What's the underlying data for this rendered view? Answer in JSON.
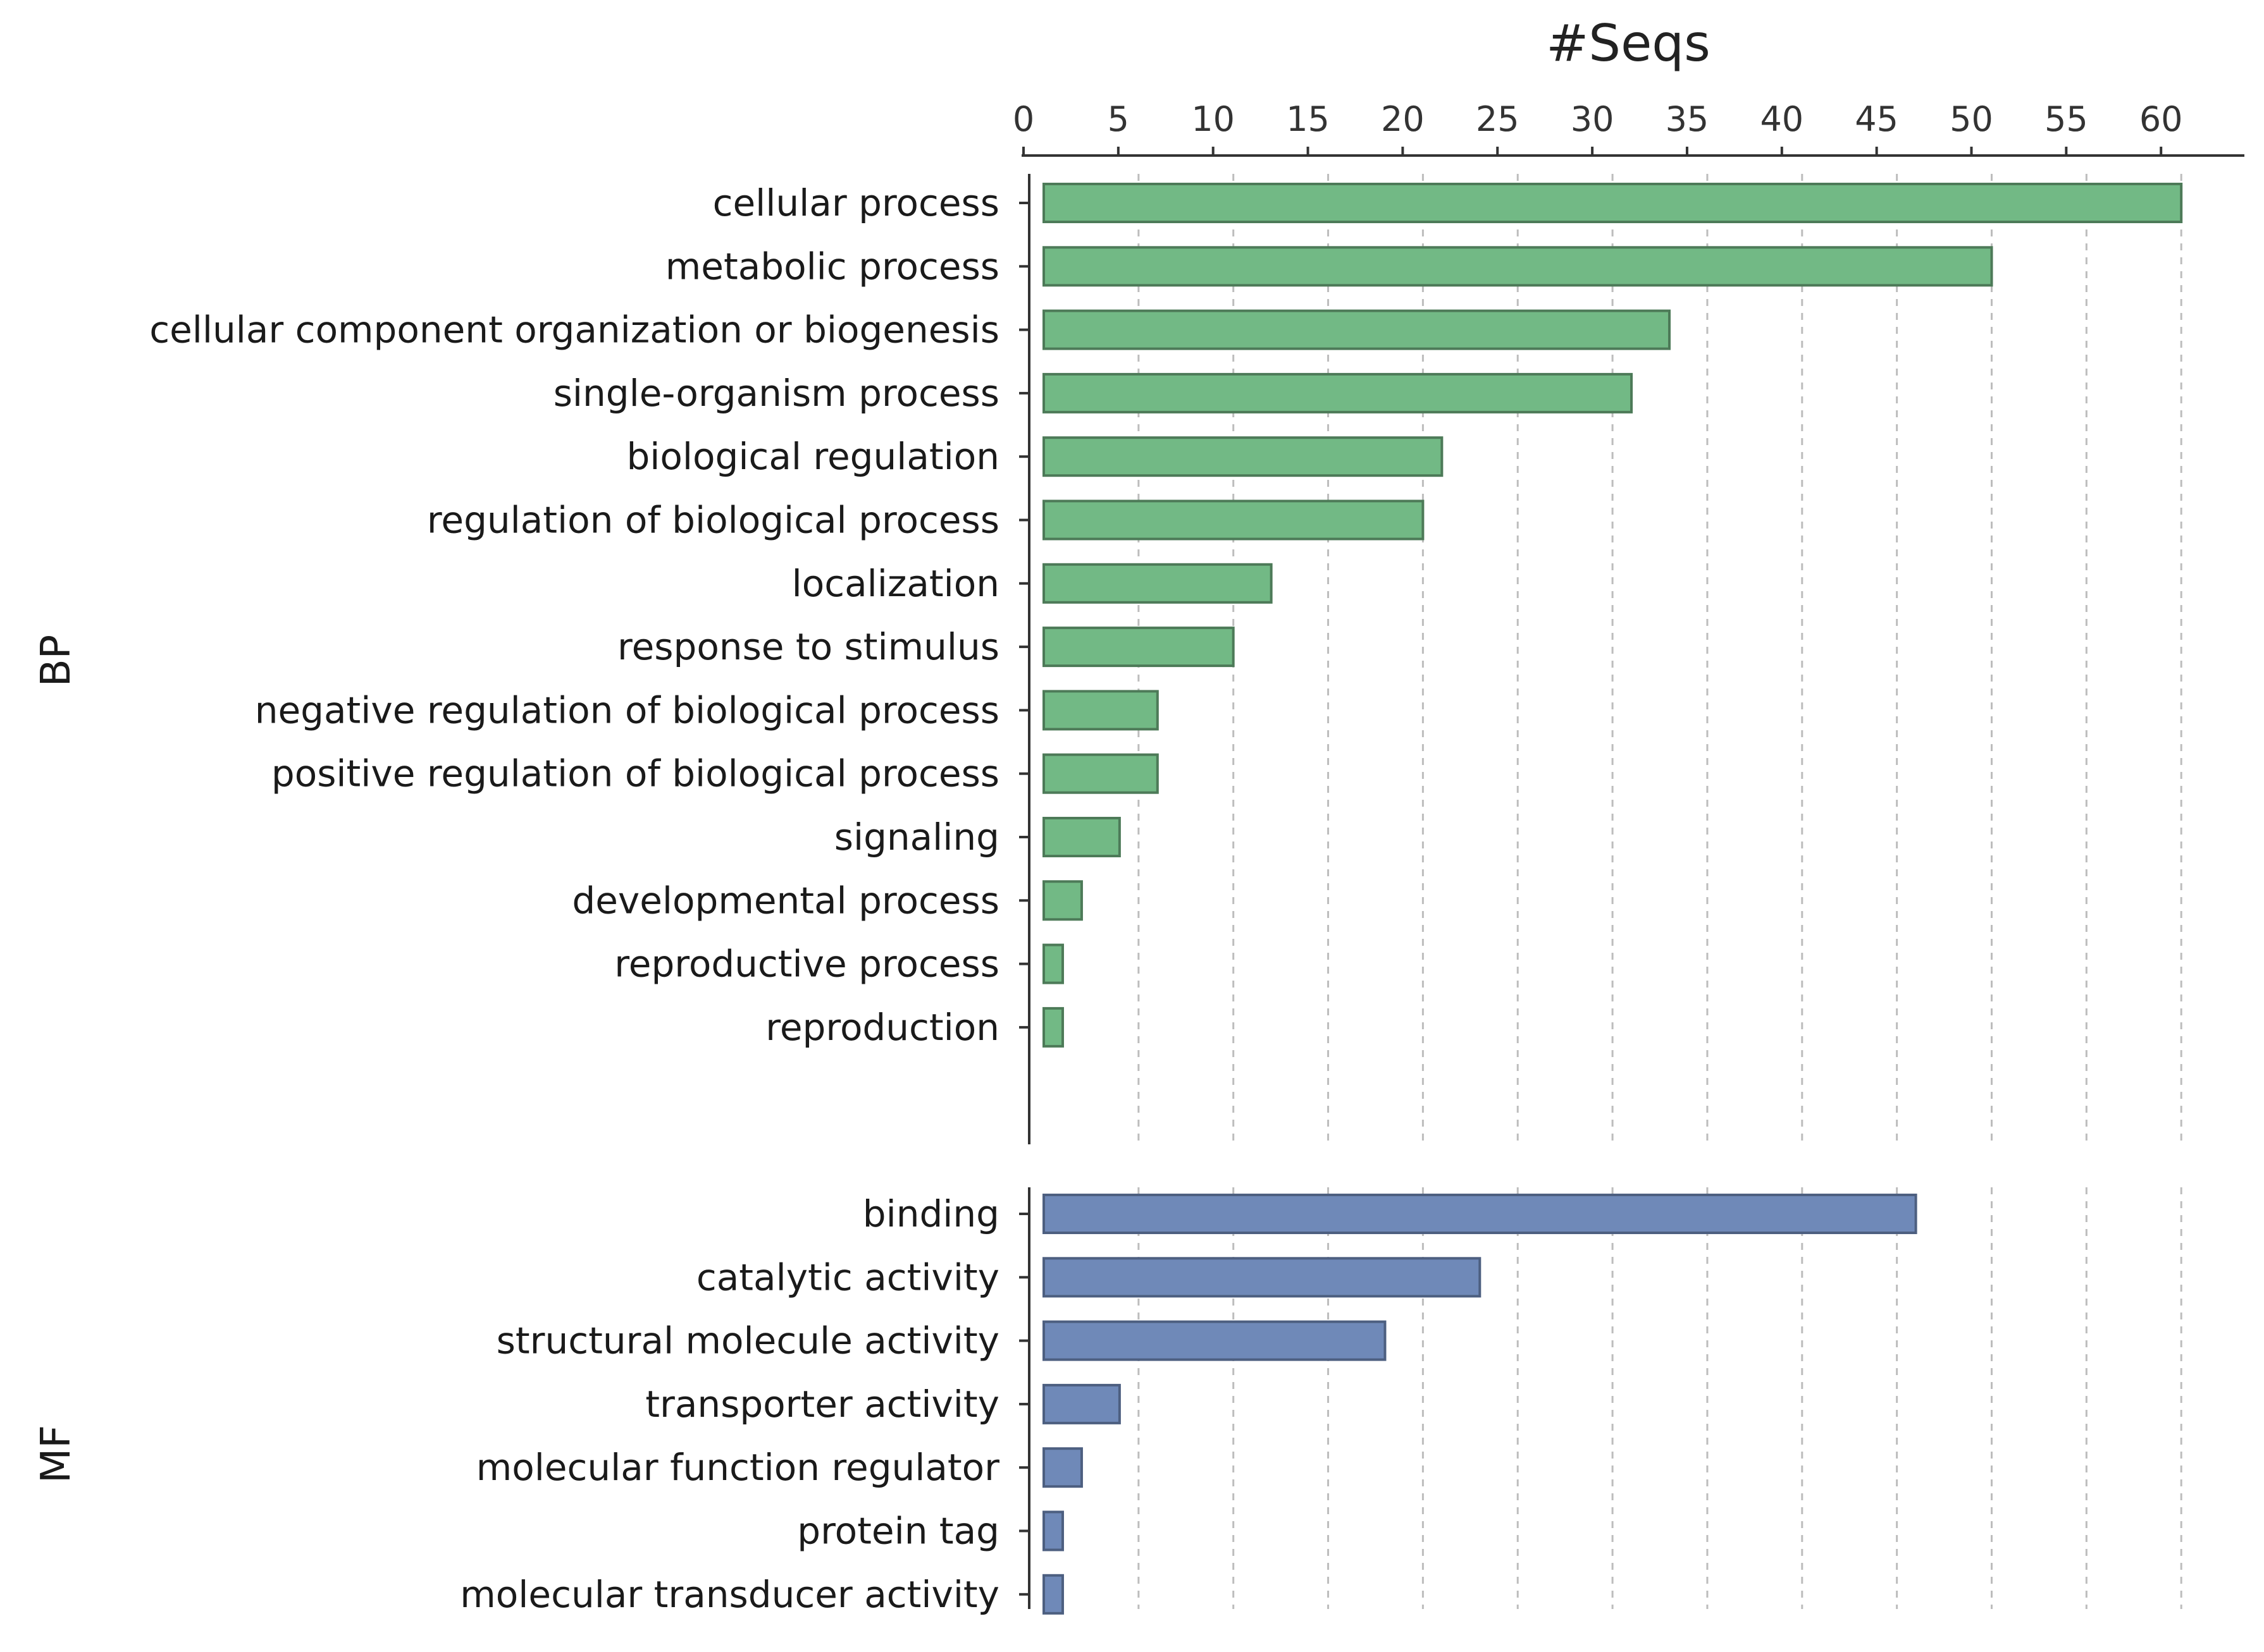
{
  "chart_data": {
    "type": "bar",
    "orientation": "horizontal",
    "title": "",
    "xlabel": "#Seqs",
    "ylabel": "",
    "xlim": [
      0,
      64
    ],
    "x_ticks": [
      0,
      5,
      10,
      15,
      20,
      25,
      30,
      35,
      40,
      45,
      50,
      55,
      60
    ],
    "grid": true,
    "x_axis_position": "top",
    "groups": [
      {
        "name": "BP",
        "color": "#72b985",
        "edge_color": "#4d7a58",
        "categories": [
          "cellular process",
          "metabolic process",
          "cellular component organization or biogenesis",
          "single-organism process",
          "biological regulation",
          "regulation of biological process",
          "localization",
          "response to stimulus",
          "negative regulation of biological process",
          "positive regulation of biological process",
          "signaling",
          "developmental process",
          "reproductive process",
          "reproduction"
        ],
        "values": [
          60,
          50,
          33,
          31,
          21,
          20,
          12,
          10,
          6,
          6,
          4,
          2,
          1,
          1
        ]
      },
      {
        "name": "MF",
        "color": "#6f89b8",
        "edge_color": "#4d5f80",
        "categories": [
          "binding",
          "catalytic activity",
          "structural molecule activity",
          "transporter activity",
          "molecular function regulator",
          "protein tag",
          "molecular transducer activity"
        ],
        "values": [
          46,
          23,
          18,
          4,
          2,
          1,
          1
        ]
      }
    ]
  }
}
